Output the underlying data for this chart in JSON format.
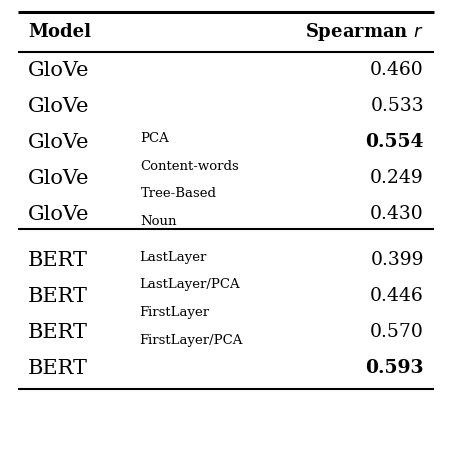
{
  "title_col1": "Model",
  "title_col2": "Spearman $\\mathit{r}$",
  "rows": [
    {
      "model_main": "GloVe",
      "model_sub": "",
      "value": "0.460",
      "bold_value": false,
      "group": 1
    },
    {
      "model_main": "GloVe",
      "model_sub": "PCA",
      "value": "0.533",
      "bold_value": false,
      "group": 1
    },
    {
      "model_main": "GloVe",
      "model_sub": "Content-words",
      "value": "0.554",
      "bold_value": true,
      "group": 1
    },
    {
      "model_main": "GloVe",
      "model_sub": "Tree-Based",
      "value": "0.249",
      "bold_value": false,
      "group": 1
    },
    {
      "model_main": "GloVe",
      "model_sub": "Noun",
      "value": "0.430",
      "bold_value": false,
      "group": 1
    },
    {
      "model_main": "BERT",
      "model_sub": "LastLayer",
      "value": "0.399",
      "bold_value": false,
      "group": 2
    },
    {
      "model_main": "BERT",
      "model_sub": "LastLayer/PCA",
      "value": "0.446",
      "bold_value": false,
      "group": 2
    },
    {
      "model_main": "BERT",
      "model_sub": "FirstLayer",
      "value": "0.570",
      "bold_value": false,
      "group": 2
    },
    {
      "model_main": "BERT",
      "model_sub": "FirstLayer/PCA",
      "value": "0.593",
      "bold_value": true,
      "group": 2
    }
  ],
  "background_color": "#ffffff",
  "line_color": "#000000",
  "text_color": "#000000",
  "header_fontsize": 13,
  "main_fontsize": 15,
  "sub_fontsize": 9.5,
  "value_fontsize": 13.5
}
